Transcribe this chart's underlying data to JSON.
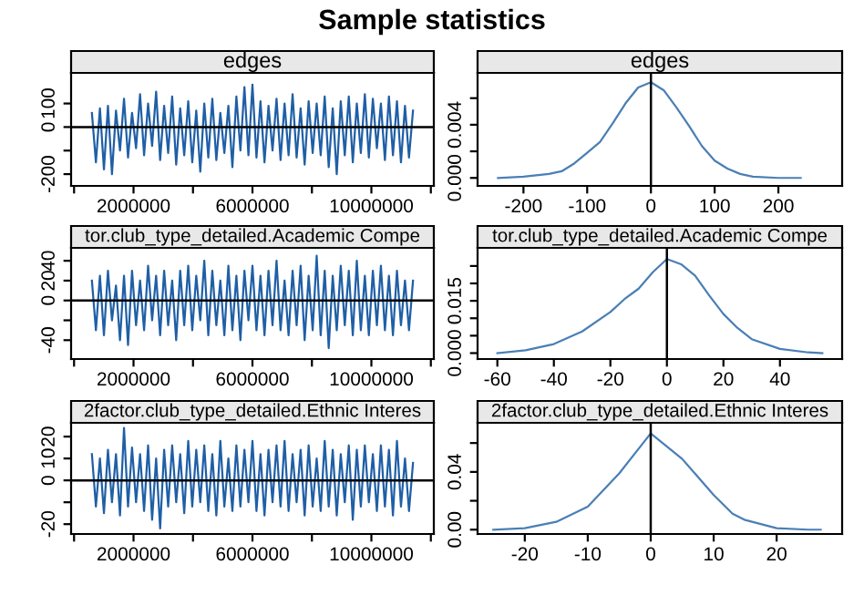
{
  "chart_data": [
    {
      "type": "line",
      "title": "Sample statistics",
      "subtitle": "edges",
      "grid": false,
      "marker": "none",
      "line_style": "solid",
      "x": [
        600000,
        735000,
        870000,
        1005000,
        1140000,
        1275000,
        1410000,
        1545000,
        1680000,
        1815000,
        1950000,
        2085000,
        2220000,
        2355000,
        2490000,
        2625000,
        2760000,
        2895000,
        3030000,
        3165000,
        3300000,
        3435000,
        3570000,
        3705000,
        3840000,
        3975000,
        4110000,
        4245000,
        4380000,
        4515000,
        4650000,
        4785000,
        4920000,
        5055000,
        5190000,
        5325000,
        5460000,
        5595000,
        5730000,
        5865000,
        6000000,
        6135000,
        6270000,
        6405000,
        6540000,
        6675000,
        6810000,
        6945000,
        7080000,
        7215000,
        7350000,
        7485000,
        7620000,
        7755000,
        7890000,
        8025000,
        8160000,
        8295000,
        8430000,
        8565000,
        8700000,
        8835000,
        8970000,
        9105000,
        9240000,
        9375000,
        9510000,
        9645000,
        9780000,
        9915000,
        10050000,
        10185000,
        10320000,
        10455000,
        10590000,
        10725000,
        10860000,
        10995000,
        11130000,
        11265000,
        11400000
      ],
      "series": [
        {
          "color": "#1f5fa6",
          "values": [
            60,
            -150,
            80,
            -180,
            90,
            -200,
            70,
            -100,
            120,
            -130,
            60,
            -90,
            140,
            -120,
            100,
            -80,
            150,
            -140,
            90,
            -110,
            130,
            -160,
            80,
            -120,
            110,
            -150,
            70,
            -190,
            100,
            -130,
            120,
            -140,
            60,
            -110,
            90,
            -170,
            130,
            -100,
            170,
            -120,
            180,
            -130,
            110,
            -150,
            90,
            -100,
            120,
            -140,
            100,
            -120,
            140,
            -130,
            80,
            -160,
            110,
            -110,
            100,
            -120,
            130,
            -170,
            80,
            -200,
            110,
            -120,
            130,
            -150,
            100,
            -110,
            140,
            -130,
            120,
            -90,
            100,
            -140,
            130,
            -120,
            110,
            -150,
            90,
            -130,
            70
          ]
        }
      ],
      "xlim": [
        -100000,
        12100000
      ],
      "xticks": [
        {
          "value": 0,
          "label": null
        },
        2000000,
        {
          "value": 4000000,
          "label": null
        },
        6000000,
        {
          "value": 8000000,
          "label": null
        },
        10000000,
        {
          "value": 12000000,
          "label": null
        }
      ],
      "ylim": [
        -250,
        230
      ],
      "yticks": [
        -200,
        {
          "value": -100,
          "label": null
        },
        0,
        100
      ],
      "ref_lines": [
        {
          "axis": "y",
          "value": 0,
          "color": "#000000"
        }
      ]
    },
    {
      "type": "line",
      "subtitle": "edges",
      "grid": false,
      "marker": "none",
      "line_style": "solid",
      "x": [
        -240,
        -200,
        -160,
        -140,
        -120,
        -100,
        -80,
        -60,
        -40,
        -20,
        0,
        20,
        40,
        60,
        80,
        100,
        120,
        140,
        160,
        200,
        235
      ],
      "series": [
        {
          "color": "#4a7fb5",
          "values": [
            0,
            0.0001,
            0.0003,
            0.0005,
            0.0011,
            0.0019,
            0.0027,
            0.0041,
            0.0056,
            0.0068,
            0.0072,
            0.0066,
            0.0053,
            0.0039,
            0.0024,
            0.0013,
            0.0007,
            0.0003,
            0.0001,
            0,
            0
          ]
        }
      ],
      "xlim": [
        -272,
        300
      ],
      "xticks": [
        -200,
        -100,
        0,
        100,
        200
      ],
      "ylim": [
        -0.0006,
        0.0079
      ],
      "yticks": [
        {
          "value": 0,
          "label": "0.000"
        },
        {
          "value": 0.002,
          "label": null
        },
        {
          "value": 0.004,
          "label": "0.004"
        },
        {
          "value": 0.006,
          "label": null
        }
      ],
      "ref_lines": [
        {
          "axis": "x",
          "value": 0,
          "color": "#000000"
        }
      ]
    },
    {
      "type": "line",
      "subtitle": "tor.club_type_detailed.Academic Compe",
      "grid": false,
      "marker": "none",
      "line_style": "solid",
      "x": [
        600000,
        735000,
        870000,
        1005000,
        1140000,
        1275000,
        1410000,
        1545000,
        1680000,
        1815000,
        1950000,
        2085000,
        2220000,
        2355000,
        2490000,
        2625000,
        2760000,
        2895000,
        3030000,
        3165000,
        3300000,
        3435000,
        3570000,
        3705000,
        3840000,
        3975000,
        4110000,
        4245000,
        4380000,
        4515000,
        4650000,
        4785000,
        4920000,
        5055000,
        5190000,
        5325000,
        5460000,
        5595000,
        5730000,
        5865000,
        6000000,
        6135000,
        6270000,
        6405000,
        6540000,
        6675000,
        6810000,
        6945000,
        7080000,
        7215000,
        7350000,
        7485000,
        7620000,
        7755000,
        7890000,
        8025000,
        8160000,
        8295000,
        8430000,
        8565000,
        8700000,
        8835000,
        8970000,
        9105000,
        9240000,
        9375000,
        9510000,
        9645000,
        9780000,
        9915000,
        10050000,
        10185000,
        10320000,
        10455000,
        10590000,
        10725000,
        10860000,
        10995000,
        11130000,
        11265000,
        11400000
      ],
      "series": [
        {
          "color": "#1f5fa6",
          "values": [
            20,
            -30,
            25,
            -35,
            30,
            -20,
            15,
            -40,
            25,
            -45,
            30,
            -25,
            20,
            -30,
            35,
            -20,
            25,
            -35,
            30,
            -25,
            20,
            -40,
            30,
            -25,
            35,
            -30,
            25,
            -20,
            40,
            -35,
            30,
            -25,
            20,
            -35,
            35,
            -30,
            25,
            -40,
            30,
            -20,
            35,
            -30,
            25,
            -35,
            30,
            -25,
            40,
            -30,
            20,
            -35,
            30,
            -25,
            35,
            -40,
            25,
            -30,
            45,
            -35,
            30,
            -48,
            25,
            -30,
            35,
            -25,
            30,
            -35,
            40,
            -30,
            25,
            -35,
            30,
            -25,
            35,
            -30,
            25,
            -35,
            30,
            -25,
            20,
            -30,
            20
          ]
        }
      ],
      "xlim": [
        -100000,
        12100000
      ],
      "xticks": [
        {
          "value": 0,
          "label": null
        },
        2000000,
        {
          "value": 4000000,
          "label": null
        },
        6000000,
        {
          "value": 8000000,
          "label": null
        },
        10000000,
        {
          "value": 12000000,
          "label": null
        }
      ],
      "ylim": [
        -59,
        53
      ],
      "yticks": [
        -40,
        {
          "value": -20,
          "label": null
        },
        0,
        {
          "value": 20,
          "label": "20"
        },
        40
      ],
      "ref_lines": [
        {
          "axis": "y",
          "value": 0,
          "color": "#000000"
        }
      ]
    },
    {
      "type": "line",
      "subtitle": "tor.club_type_detailed.Academic Compe",
      "grid": false,
      "marker": "none",
      "line_style": "solid",
      "x": [
        -60,
        -50,
        -40,
        -30,
        -20,
        -15,
        -10,
        -5,
        0,
        5,
        10,
        15,
        20,
        25,
        30,
        40,
        50,
        55
      ],
      "series": [
        {
          "color": "#4a7fb5",
          "values": [
            0,
            0.0008,
            0.0026,
            0.0062,
            0.0118,
            0.0155,
            0.0185,
            0.0232,
            0.027,
            0.0255,
            0.0222,
            0.0165,
            0.0112,
            0.0072,
            0.004,
            0.0012,
            0.0002,
            0
          ]
        }
      ],
      "xlim": [
        -67,
        62
      ],
      "xticks": [
        -60,
        -40,
        -20,
        0,
        20,
        40
      ],
      "ylim": [
        -0.0017,
        0.0302
      ],
      "yticks": [
        {
          "value": 0,
          "label": "0.000"
        },
        {
          "value": 0.005,
          "label": null
        },
        {
          "value": 0.01,
          "label": null
        },
        {
          "value": 0.015,
          "label": "0.015"
        },
        {
          "value": 0.02,
          "label": null
        },
        {
          "value": 0.025,
          "label": null
        }
      ],
      "ref_lines": [
        {
          "axis": "x",
          "value": 0,
          "color": "#000000"
        }
      ]
    },
    {
      "type": "line",
      "subtitle": "2factor.club_type_detailed.Ethnic Interes",
      "grid": false,
      "marker": "none",
      "line_style": "solid",
      "x": [
        600000,
        735000,
        870000,
        1005000,
        1140000,
        1275000,
        1410000,
        1545000,
        1680000,
        1815000,
        1950000,
        2085000,
        2220000,
        2355000,
        2490000,
        2625000,
        2760000,
        2895000,
        3030000,
        3165000,
        3300000,
        3435000,
        3570000,
        3705000,
        3840000,
        3975000,
        4110000,
        4245000,
        4380000,
        4515000,
        4650000,
        4785000,
        4920000,
        5055000,
        5190000,
        5325000,
        5460000,
        5595000,
        5730000,
        5865000,
        6000000,
        6135000,
        6270000,
        6405000,
        6540000,
        6675000,
        6810000,
        6945000,
        7080000,
        7215000,
        7350000,
        7485000,
        7620000,
        7755000,
        7890000,
        8025000,
        8160000,
        8295000,
        8430000,
        8565000,
        8700000,
        8835000,
        8970000,
        9105000,
        9240000,
        9375000,
        9510000,
        9645000,
        9780000,
        9915000,
        10050000,
        10185000,
        10320000,
        10455000,
        10590000,
        10725000,
        10860000,
        10995000,
        11130000,
        11265000,
        11400000
      ],
      "series": [
        {
          "color": "#1f5fa6",
          "values": [
            12,
            -12,
            10,
            -15,
            14,
            -10,
            12,
            -16,
            24,
            -12,
            15,
            -10,
            12,
            -14,
            16,
            -18,
            10,
            -22,
            14,
            -12,
            16,
            -10,
            12,
            -15,
            18,
            -12,
            14,
            -10,
            16,
            -14,
            12,
            -16,
            18,
            -12,
            10,
            -14,
            16,
            -12,
            14,
            -10,
            18,
            -14,
            12,
            -16,
            14,
            -10,
            16,
            -12,
            18,
            -14,
            12,
            -10,
            14,
            -16,
            16,
            -12,
            10,
            -14,
            18,
            -12,
            14,
            -16,
            12,
            -10,
            16,
            -18,
            14,
            -12,
            16,
            -10,
            12,
            -14,
            16,
            -12,
            14,
            -16,
            18,
            -12,
            10,
            -14,
            8
          ]
        }
      ],
      "xlim": [
        -100000,
        12100000
      ],
      "xticks": [
        {
          "value": 0,
          "label": null
        },
        2000000,
        {
          "value": 4000000,
          "label": null
        },
        6000000,
        {
          "value": 8000000,
          "label": null
        },
        10000000,
        {
          "value": 12000000,
          "label": null
        }
      ],
      "ylim": [
        -24.5,
        26.3
      ],
      "yticks": [
        -20,
        {
          "value": -10,
          "label": null
        },
        0,
        10,
        20
      ],
      "ref_lines": [
        {
          "axis": "y",
          "value": 0,
          "color": "#000000"
        }
      ]
    },
    {
      "type": "line",
      "subtitle": "2factor.club_type_detailed.Ethnic Interes",
      "grid": false,
      "marker": "none",
      "line_style": "solid",
      "x": [
        -25,
        -20,
        -15,
        -10,
        -5,
        0,
        5,
        10,
        13,
        15,
        20,
        25,
        27
      ],
      "series": [
        {
          "color": "#4a7fb5",
          "values": [
            0,
            0.001,
            0.0054,
            0.016,
            0.039,
            0.0667,
            0.049,
            0.024,
            0.011,
            0.0067,
            0.001,
            0,
            0
          ]
        }
      ],
      "xlim": [
        -27.5,
        30.4
      ],
      "xticks": [
        -20,
        -10,
        0,
        10,
        20
      ],
      "ylim": [
        -0.003,
        0.074
      ],
      "yticks": [
        {
          "value": 0,
          "label": "0.00"
        },
        {
          "value": 0.02,
          "label": null
        },
        {
          "value": 0.04,
          "label": "0.04"
        },
        {
          "value": 0.06,
          "label": null
        }
      ],
      "ref_lines": [
        {
          "axis": "x",
          "value": 0,
          "color": "#000000"
        }
      ]
    }
  ]
}
